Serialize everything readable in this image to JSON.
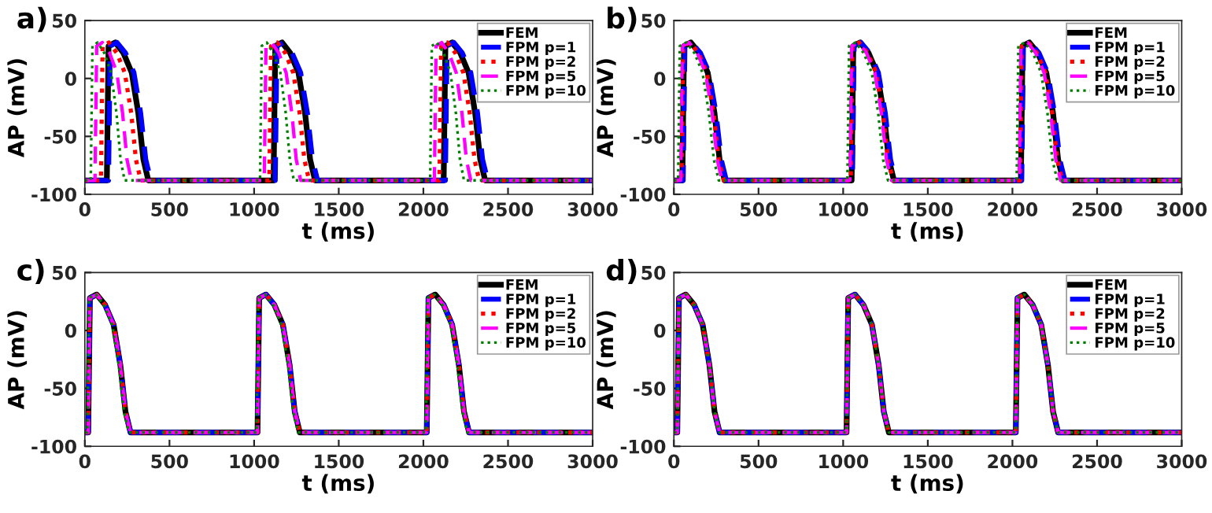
{
  "chart_data": [
    {
      "type": "line",
      "annotations": [
        "a)"
      ],
      "xlabel": "t (ms)",
      "ylabel": "AP (mV)",
      "xlim": [
        0,
        3000
      ],
      "ylim": [
        -100,
        50
      ],
      "xticks": [
        0,
        500,
        1000,
        1500,
        2000,
        2500,
        3000
      ],
      "yticks": [
        -100,
        -50,
        0,
        50
      ],
      "grid": false,
      "legend": "top right",
      "series": [
        {
          "name": "FEM",
          "color": "#000000",
          "line_style": "solid",
          "x": [
            0,
            130,
            140,
            180,
            228,
            277,
            316,
            346,
            375,
            1115,
            1125,
            1165,
            1213,
            1262,
            1301,
            1331,
            1360,
            2120,
            2130,
            2170,
            2218,
            2267,
            2306,
            2336,
            2365,
            3000
          ],
          "values": [
            -88,
            -88,
            28,
            31,
            22,
            5,
            -30,
            -70,
            -88,
            -88,
            28,
            31,
            22,
            5,
            -30,
            -70,
            -88,
            -88,
            28,
            31,
            22,
            5,
            -30,
            -70,
            -88,
            -88
          ]
        },
        {
          "name": "FPM p=1",
          "color": "#0000ff",
          "line_style": "dashed",
          "x": [
            0,
            140,
            150,
            190,
            240,
            290,
            330,
            360,
            390,
            1125,
            1135,
            1175,
            1225,
            1275,
            1315,
            1345,
            1375,
            2130,
            2140,
            2180,
            2230,
            2280,
            2320,
            2350,
            2380,
            3000
          ],
          "values": [
            -88,
            -88,
            28,
            31,
            22,
            5,
            -30,
            -70,
            -88,
            -88,
            28,
            31,
            22,
            5,
            -30,
            -70,
            -88,
            -88,
            28,
            31,
            22,
            5,
            -30,
            -70,
            -88,
            -88
          ]
        },
        {
          "name": "FPM p=2",
          "color": "#ff0000",
          "line_style": "dotted",
          "x": [
            0,
            95,
            105,
            142,
            189,
            236,
            274,
            302,
            330,
            1090,
            1100,
            1137,
            1184,
            1231,
            1269,
            1297,
            1325,
            2095,
            2105,
            2142,
            2189,
            2236,
            2274,
            2302,
            2330,
            3000
          ],
          "values": [
            -88,
            -88,
            28,
            31,
            22,
            5,
            -30,
            -70,
            -88,
            -88,
            28,
            31,
            22,
            5,
            -30,
            -70,
            -88,
            -88,
            28,
            31,
            22,
            5,
            -30,
            -70,
            -88,
            -88
          ]
        },
        {
          "name": "FPM p=5",
          "color": "#ff00ff",
          "line_style": "dashed",
          "x": [
            0,
            60,
            70,
            103,
            146,
            189,
            223,
            249,
            275,
            1060,
            1070,
            1103,
            1146,
            1189,
            1223,
            1249,
            1275,
            2065,
            2075,
            2108,
            2151,
            2194,
            2228,
            2254,
            2280,
            3000
          ],
          "values": [
            -88,
            -88,
            28,
            31,
            22,
            5,
            -30,
            -70,
            -88,
            -88,
            28,
            31,
            22,
            5,
            -30,
            -70,
            -88,
            -88,
            28,
            31,
            22,
            5,
            -30,
            -70,
            -88,
            -88
          ]
        },
        {
          "name": "FPM p=10",
          "color": "#008000",
          "line_style": "dotted",
          "x": [
            0,
            35,
            45,
            75,
            115,
            155,
            187,
            211,
            235,
            1035,
            1045,
            1075,
            1115,
            1155,
            1187,
            1211,
            1235,
            2040,
            2050,
            2080,
            2120,
            2160,
            2192,
            2216,
            2240,
            3000
          ],
          "values": [
            -88,
            -88,
            28,
            31,
            22,
            5,
            -30,
            -70,
            -88,
            -88,
            28,
            31,
            22,
            5,
            -30,
            -70,
            -88,
            -88,
            28,
            31,
            22,
            5,
            -30,
            -70,
            -88,
            -88
          ]
        }
      ]
    },
    {
      "type": "line",
      "annotations": [
        "b)"
      ],
      "xlabel": "t (ms)",
      "ylabel": "AP (mV)",
      "xlim": [
        0,
        3000
      ],
      "ylim": [
        -100,
        50
      ],
      "xticks": [
        0,
        500,
        1000,
        1500,
        2000,
        2500,
        3000
      ],
      "yticks": [
        -100,
        -50,
        0,
        50
      ],
      "grid": false,
      "legend": "top right",
      "series": [
        {
          "name": "FEM",
          "color": "#000000",
          "line_style": "solid",
          "x": [
            0,
            50,
            60,
            100,
            150,
            200,
            240,
            270,
            300,
            1050,
            1060,
            1100,
            1150,
            1200,
            1240,
            1270,
            1300,
            2050,
            2060,
            2100,
            2150,
            2200,
            2240,
            2270,
            2300,
            3000
          ],
          "values": [
            -88,
            -88,
            28,
            31,
            22,
            5,
            -30,
            -70,
            -88,
            -88,
            28,
            31,
            22,
            5,
            -30,
            -70,
            -88,
            -88,
            28,
            31,
            22,
            5,
            -30,
            -70,
            -88,
            -88
          ]
        },
        {
          "name": "FPM p=1",
          "color": "#0000ff",
          "line_style": "dashed",
          "x": [
            0,
            55,
            65,
            105,
            157,
            208,
            249,
            280,
            310,
            1055,
            1065,
            1105,
            1157,
            1208,
            1249,
            1280,
            1310,
            2055,
            2065,
            2105,
            2157,
            2208,
            2249,
            2280,
            2310,
            3000
          ],
          "values": [
            -88,
            -88,
            28,
            31,
            22,
            5,
            -30,
            -70,
            -88,
            -88,
            28,
            31,
            22,
            5,
            -30,
            -70,
            -88,
            -88,
            28,
            31,
            22,
            5,
            -30,
            -70,
            -88,
            -88
          ]
        },
        {
          "name": "FPM p=2",
          "color": "#ff0000",
          "line_style": "dotted",
          "x": [
            0,
            45,
            55,
            95,
            145,
            195,
            235,
            265,
            295,
            1045,
            1055,
            1095,
            1145,
            1195,
            1235,
            1265,
            1295,
            2045,
            2055,
            2095,
            2145,
            2195,
            2235,
            2265,
            2295,
            3000
          ],
          "values": [
            -88,
            -88,
            28,
            31,
            22,
            5,
            -30,
            -70,
            -88,
            -88,
            28,
            31,
            22,
            5,
            -30,
            -70,
            -88,
            -88,
            28,
            31,
            22,
            5,
            -30,
            -70,
            -88,
            -88
          ]
        },
        {
          "name": "FPM p=5",
          "color": "#ff00ff",
          "line_style": "dashed",
          "x": [
            0,
            40,
            50,
            90,
            138,
            187,
            226,
            256,
            285,
            1040,
            1050,
            1090,
            1138,
            1187,
            1226,
            1256,
            1285,
            2040,
            2050,
            2090,
            2138,
            2187,
            2226,
            2256,
            2285,
            3000
          ],
          "values": [
            -88,
            -88,
            28,
            31,
            22,
            5,
            -30,
            -70,
            -88,
            -88,
            28,
            31,
            22,
            5,
            -30,
            -70,
            -88,
            -88,
            28,
            31,
            22,
            5,
            -30,
            -70,
            -88,
            -88
          ]
        },
        {
          "name": "FPM p=10",
          "color": "#008000",
          "line_style": "dotted",
          "x": [
            0,
            25,
            35,
            73,
            121,
            169,
            207,
            236,
            265,
            1025,
            1035,
            1073,
            1121,
            1169,
            1207,
            1236,
            1265,
            2025,
            2035,
            2073,
            2121,
            2169,
            2207,
            2236,
            2265,
            3000
          ],
          "values": [
            -88,
            -88,
            28,
            31,
            22,
            5,
            -30,
            -70,
            -88,
            -88,
            28,
            31,
            22,
            5,
            -30,
            -70,
            -88,
            -88,
            28,
            31,
            22,
            5,
            -30,
            -70,
            -88,
            -88
          ]
        }
      ]
    },
    {
      "type": "line",
      "annotations": [
        "c)"
      ],
      "xlabel": "t (ms)",
      "ylabel": "AP (mV)",
      "xlim": [
        0,
        3000
      ],
      "ylim": [
        -100,
        50
      ],
      "xticks": [
        0,
        500,
        1000,
        1500,
        2000,
        2500,
        3000
      ],
      "yticks": [
        -100,
        -50,
        0,
        50
      ],
      "grid": false,
      "legend": "top right",
      "series": [
        {
          "name": "FEM",
          "color": "#000000",
          "line_style": "solid",
          "x": [
            0,
            20,
            30,
            70,
            120,
            170,
            210,
            240,
            270,
            1020,
            1030,
            1070,
            1120,
            1170,
            1210,
            1240,
            1270,
            2020,
            2030,
            2070,
            2120,
            2170,
            2210,
            2240,
            2270,
            3000
          ],
          "values": [
            -88,
            -88,
            28,
            31,
            22,
            5,
            -30,
            -70,
            -88,
            -88,
            28,
            31,
            22,
            5,
            -30,
            -70,
            -88,
            -88,
            28,
            31,
            22,
            5,
            -30,
            -70,
            -88,
            -88
          ]
        },
        {
          "name": "FPM p=1",
          "color": "#0000ff",
          "line_style": "dashed",
          "x": [
            0,
            20,
            30,
            70,
            120,
            170,
            210,
            240,
            270,
            1020,
            1030,
            1070,
            1120,
            1170,
            1210,
            1240,
            1270,
            2020,
            2030,
            2070,
            2120,
            2170,
            2210,
            2240,
            2270,
            3000
          ],
          "values": [
            -88,
            -88,
            28,
            31,
            22,
            5,
            -30,
            -70,
            -88,
            -88,
            28,
            31,
            22,
            5,
            -30,
            -70,
            -88,
            -88,
            28,
            31,
            22,
            5,
            -30,
            -70,
            -88,
            -88
          ]
        },
        {
          "name": "FPM p=2",
          "color": "#ff0000",
          "line_style": "dotted",
          "x": [
            0,
            20,
            30,
            70,
            120,
            170,
            210,
            240,
            270,
            1020,
            1030,
            1070,
            1120,
            1170,
            1210,
            1240,
            1270,
            2020,
            2030,
            2070,
            2120,
            2170,
            2210,
            2240,
            2270,
            3000
          ],
          "values": [
            -88,
            -88,
            28,
            31,
            22,
            5,
            -30,
            -70,
            -88,
            -88,
            28,
            31,
            22,
            5,
            -30,
            -70,
            -88,
            -88,
            28,
            31,
            22,
            5,
            -30,
            -70,
            -88,
            -88
          ]
        },
        {
          "name": "FPM p=5",
          "color": "#ff00ff",
          "line_style": "dashed",
          "x": [
            0,
            20,
            30,
            70,
            120,
            170,
            210,
            240,
            270,
            1020,
            1030,
            1070,
            1120,
            1170,
            1210,
            1240,
            1270,
            2020,
            2030,
            2070,
            2120,
            2170,
            2210,
            2240,
            2270,
            3000
          ],
          "values": [
            -88,
            -88,
            28,
            31,
            22,
            5,
            -30,
            -70,
            -88,
            -88,
            28,
            31,
            22,
            5,
            -30,
            -70,
            -88,
            -88,
            28,
            31,
            22,
            5,
            -30,
            -70,
            -88,
            -88
          ]
        },
        {
          "name": "FPM p=10",
          "color": "#008000",
          "line_style": "dotted",
          "x": [
            0,
            15,
            25,
            65,
            113,
            162,
            201,
            231,
            260,
            1015,
            1025,
            1065,
            1113,
            1162,
            1201,
            1231,
            1260,
            2015,
            2025,
            2065,
            2113,
            2162,
            2201,
            2231,
            2260,
            3000
          ],
          "values": [
            -88,
            -88,
            28,
            31,
            22,
            5,
            -30,
            -70,
            -88,
            -88,
            28,
            31,
            22,
            5,
            -30,
            -70,
            -88,
            -88,
            28,
            31,
            22,
            5,
            -30,
            -70,
            -88,
            -88
          ]
        }
      ]
    },
    {
      "type": "line",
      "annotations": [
        "d)"
      ],
      "xlabel": "t (ms)",
      "ylabel": "AP (mV)",
      "xlim": [
        0,
        3000
      ],
      "ylim": [
        -100,
        50
      ],
      "xticks": [
        0,
        500,
        1000,
        1500,
        2000,
        2500,
        3000
      ],
      "yticks": [
        -100,
        -50,
        0,
        50
      ],
      "grid": false,
      "legend": "top right",
      "series": [
        {
          "name": "FEM",
          "color": "#000000",
          "line_style": "solid",
          "x": [
            0,
            20,
            30,
            70,
            120,
            170,
            210,
            240,
            270,
            1020,
            1030,
            1070,
            1120,
            1170,
            1210,
            1240,
            1270,
            2020,
            2030,
            2070,
            2120,
            2170,
            2210,
            2240,
            2270,
            3000
          ],
          "values": [
            -88,
            -88,
            28,
            31,
            22,
            5,
            -30,
            -70,
            -88,
            -88,
            28,
            31,
            22,
            5,
            -30,
            -70,
            -88,
            -88,
            28,
            31,
            22,
            5,
            -30,
            -70,
            -88,
            -88
          ]
        },
        {
          "name": "FPM p=1",
          "color": "#0000ff",
          "line_style": "dashed",
          "x": [
            0,
            20,
            30,
            70,
            120,
            170,
            210,
            240,
            270,
            1020,
            1030,
            1070,
            1120,
            1170,
            1210,
            1240,
            1270,
            2020,
            2030,
            2070,
            2120,
            2170,
            2210,
            2240,
            2270,
            3000
          ],
          "values": [
            -88,
            -88,
            28,
            31,
            22,
            5,
            -30,
            -70,
            -88,
            -88,
            28,
            31,
            22,
            5,
            -30,
            -70,
            -88,
            -88,
            28,
            31,
            22,
            5,
            -30,
            -70,
            -88,
            -88
          ]
        },
        {
          "name": "FPM p=2",
          "color": "#ff0000",
          "line_style": "dotted",
          "x": [
            0,
            20,
            30,
            70,
            120,
            170,
            210,
            240,
            270,
            1020,
            1030,
            1070,
            1120,
            1170,
            1210,
            1240,
            1270,
            2020,
            2030,
            2070,
            2120,
            2170,
            2210,
            2240,
            2270,
            3000
          ],
          "values": [
            -88,
            -88,
            28,
            31,
            22,
            5,
            -30,
            -70,
            -88,
            -88,
            28,
            31,
            22,
            5,
            -30,
            -70,
            -88,
            -88,
            28,
            31,
            22,
            5,
            -30,
            -70,
            -88,
            -88
          ]
        },
        {
          "name": "FPM p=5",
          "color": "#ff00ff",
          "line_style": "dashed",
          "x": [
            0,
            20,
            30,
            70,
            120,
            170,
            210,
            240,
            270,
            1020,
            1030,
            1070,
            1120,
            1170,
            1210,
            1240,
            1270,
            2020,
            2030,
            2070,
            2120,
            2170,
            2210,
            2240,
            2270,
            3000
          ],
          "values": [
            -88,
            -88,
            28,
            31,
            22,
            5,
            -30,
            -70,
            -88,
            -88,
            28,
            31,
            22,
            5,
            -30,
            -70,
            -88,
            -88,
            28,
            31,
            22,
            5,
            -30,
            -70,
            -88,
            -88
          ]
        },
        {
          "name": "FPM p=10",
          "color": "#008000",
          "line_style": "dotted",
          "x": [
            0,
            20,
            30,
            70,
            120,
            170,
            210,
            240,
            270,
            1020,
            1030,
            1070,
            1120,
            1170,
            1210,
            1240,
            1270,
            2020,
            2030,
            2070,
            2120,
            2170,
            2210,
            2240,
            2270,
            3000
          ],
          "values": [
            -88,
            -88,
            28,
            31,
            22,
            5,
            -30,
            -70,
            -88,
            -88,
            28,
            31,
            22,
            5,
            -30,
            -70,
            -88,
            -88,
            28,
            31,
            22,
            5,
            -30,
            -70,
            -88,
            -88
          ]
        }
      ]
    }
  ]
}
